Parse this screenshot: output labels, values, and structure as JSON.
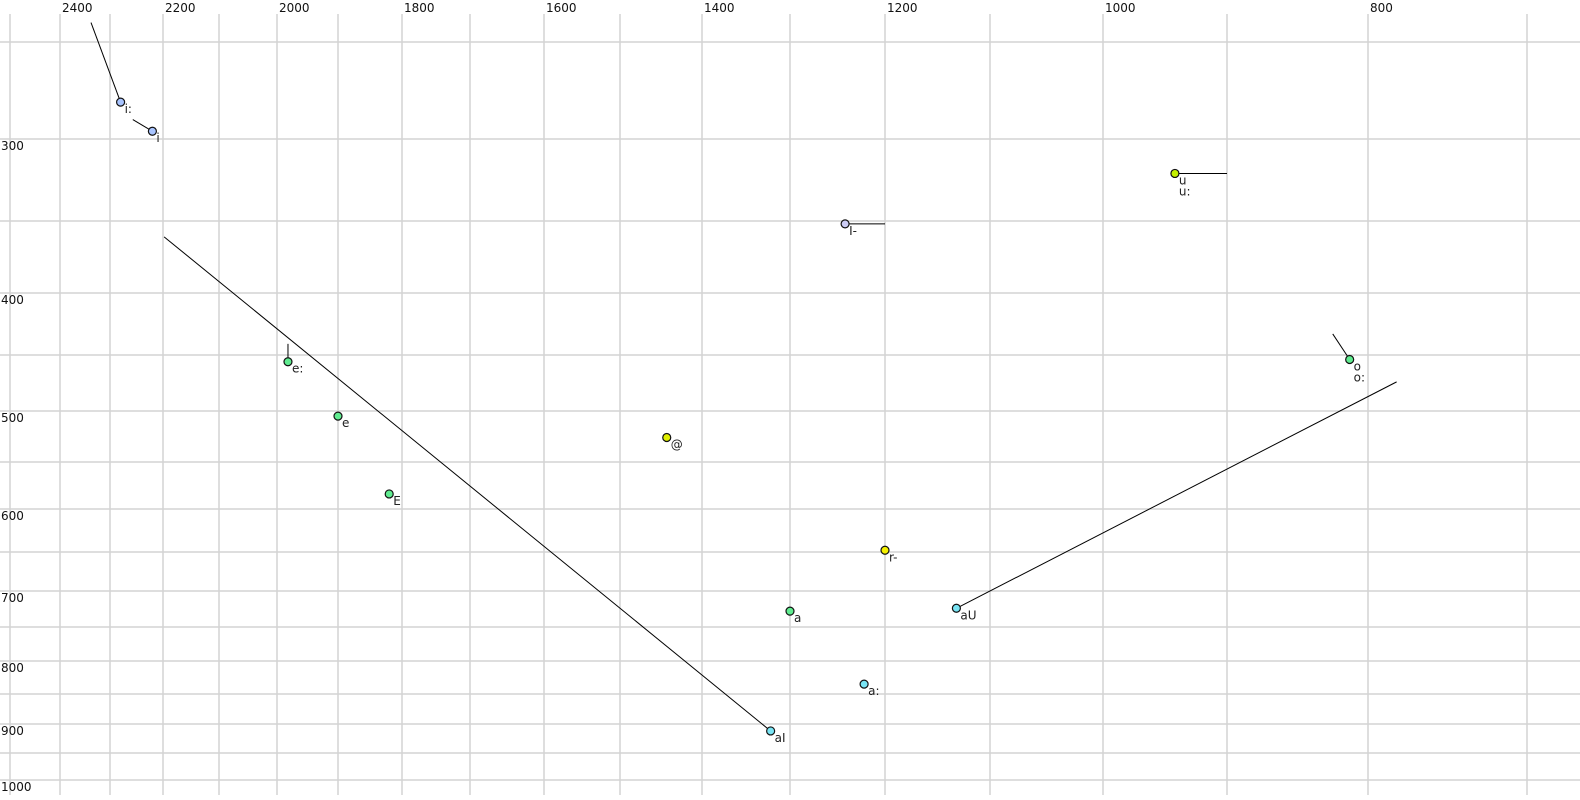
{
  "chart_data": {
    "type": "scatter",
    "title": "",
    "xlabel": "",
    "ylabel": "",
    "x_axis": {
      "reversed": true,
      "position": "top",
      "ticks": [
        2400,
        2200,
        2000,
        1800,
        1600,
        1400,
        1200,
        1000,
        800
      ],
      "gridlines": [
        2500,
        2400,
        2300,
        2200,
        2100,
        2000,
        1900,
        1800,
        1700,
        1600,
        1500,
        1400,
        1300,
        1200,
        1100,
        1000,
        900,
        800,
        700
      ]
    },
    "y_axis": {
      "reversed": false,
      "position": "left",
      "ticks": [
        300,
        400,
        500,
        600,
        700,
        800,
        900,
        1000
      ],
      "gridlines": [
        250,
        300,
        350,
        400,
        450,
        500,
        550,
        600,
        650,
        700,
        750,
        800,
        850,
        900,
        950,
        1000
      ]
    },
    "grid": true,
    "points": [
      {
        "labels": [
          "i:"
        ],
        "f2": 2280,
        "f1": 281,
        "color": "#a8c4ff",
        "trail": [
          2338,
          240
        ]
      },
      {
        "labels": [
          "i"
        ],
        "f2": 2220,
        "f1": 296,
        "color": "#a8c4ff",
        "trail": [
          2257,
          290
        ]
      },
      {
        "labels": [
          "I-"
        ],
        "f2": 1242,
        "f1": 352,
        "color": "#ccccf4",
        "trail": [
          1200,
          352
        ]
      },
      {
        "labels": [
          "u",
          "u:"
        ],
        "f2": 942,
        "f1": 321,
        "color": "#c4f000",
        "trail": [
          900,
          321
        ]
      },
      {
        "labels": [
          "e:"
        ],
        "f2": 1982,
        "f1": 456,
        "color": "#60ec90",
        "trail": [
          1982,
          441
        ]
      },
      {
        "labels": [
          "e"
        ],
        "f2": 1900,
        "f1": 505,
        "color": "#60ec90",
        "trail": null
      },
      {
        "labels": [
          "E"
        ],
        "f2": 1820,
        "f1": 584,
        "color": "#60ec90",
        "trail": null
      },
      {
        "labels": [
          "@"
        ],
        "f2": 1443,
        "f1": 526,
        "color": "#e0f000",
        "trail": null
      },
      {
        "labels": [
          "r-"
        ],
        "f2": 1200,
        "f1": 648,
        "color": "#f4f000",
        "trail": null
      },
      {
        "labels": [
          "a"
        ],
        "f2": 1300,
        "f1": 728,
        "color": "#60ec90",
        "trail": null
      },
      {
        "labels": [
          "a:"
        ],
        "f2": 1222,
        "f1": 835,
        "color": "#78e4f4",
        "trail": null
      },
      {
        "labels": [
          "aI"
        ],
        "f2": 1322,
        "f1": 912,
        "color": "#78e4f4",
        "trail": [
          2198,
          361
        ]
      },
      {
        "labels": [
          "aU"
        ],
        "f2": 1132,
        "f1": 724,
        "color": "#78e4f4",
        "trail": [
          782,
          474
        ]
      },
      {
        "labels": [
          "o",
          "o:"
        ],
        "f2": 813,
        "f1": 454,
        "color": "#60ec90",
        "trail": [
          825,
          433
        ]
      }
    ]
  }
}
